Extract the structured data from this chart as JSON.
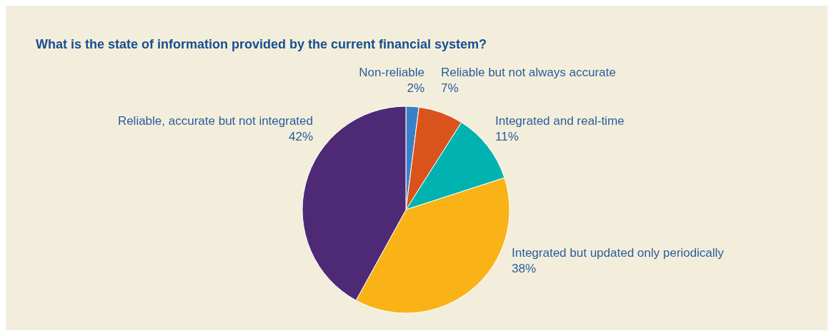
{
  "chart_data": {
    "type": "pie",
    "title": "What is the state of information provided by the current financial system?",
    "categories": [
      "Non-reliable",
      "Reliable but not always accurate",
      "Integrated and real-time",
      "Integrated but updated only periodically",
      "Reliable, accurate but not integrated"
    ],
    "values": [
      2,
      7,
      11,
      38,
      42
    ],
    "value_labels": [
      "2%",
      "7%",
      "11%",
      "38%",
      "42%"
    ],
    "colors": [
      "#3b7fc6",
      "#da531d",
      "#00b2b0",
      "#f9b317",
      "#4e2a76"
    ],
    "legend": false
  }
}
